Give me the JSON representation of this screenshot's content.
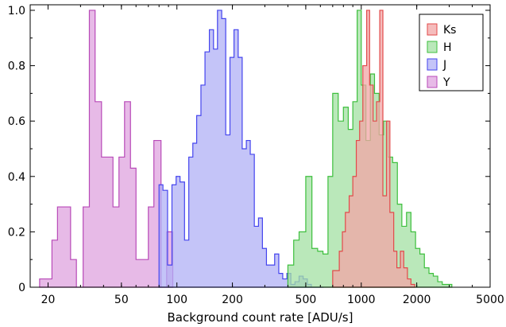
{
  "chart_data": {
    "type": "histogram",
    "xlabel": "Background count rate [ADU/s]",
    "ylabel": "",
    "xscale": "log",
    "xlim": [
      16,
      5000
    ],
    "ylim": [
      0,
      1.02
    ],
    "x_ticks": [
      {
        "value": 20,
        "label": "20"
      },
      {
        "value": 50,
        "label": "50"
      },
      {
        "value": 100,
        "label": "100"
      },
      {
        "value": 200,
        "label": "200"
      },
      {
        "value": 500,
        "label": "500"
      },
      {
        "value": 1000,
        "label": "1000"
      },
      {
        "value": 2000,
        "label": "2000"
      },
      {
        "value": 5000,
        "label": "5000"
      }
    ],
    "y_ticks": [
      {
        "value": 0,
        "label": "0"
      },
      {
        "value": 0.2,
        "label": "0.2"
      },
      {
        "value": 0.4,
        "label": "0.4"
      },
      {
        "value": 0.6,
        "label": "0.6"
      },
      {
        "value": 0.8,
        "label": "0.8"
      },
      {
        "value": 1.0,
        "label": "1.0"
      }
    ],
    "grid": false,
    "legend_position": "top-right",
    "series": [
      {
        "name": "Ks",
        "color": "#e24a4a",
        "fill": "#f2a6a6",
        "edges": [
          700,
          760,
          790,
          820,
          860,
          900,
          940,
          980,
          1020,
          1070,
          1110,
          1160,
          1210,
          1260,
          1310,
          1370,
          1430,
          1500,
          1560,
          1630,
          1700,
          1780,
          1860,
          1950
        ],
        "values": [
          0.06,
          0.13,
          0.2,
          0.27,
          0.33,
          0.4,
          0.53,
          0.6,
          0.8,
          1.0,
          0.73,
          0.6,
          0.67,
          1.0,
          0.33,
          0.6,
          0.27,
          0.13,
          0.07,
          0.13,
          0.07,
          0.03,
          0.01
        ]
      },
      {
        "name": "H",
        "color": "#3dbf3d",
        "fill": "#a3e0a3",
        "edges": [
          400,
          430,
          460,
          500,
          540,
          580,
          620,
          660,
          700,
          750,
          800,
          850,
          900,
          950,
          1000,
          1060,
          1120,
          1180,
          1250,
          1320,
          1400,
          1480,
          1570,
          1660,
          1760,
          1860,
          1970,
          2080,
          2200,
          2330,
          2460,
          2600,
          2750,
          2900,
          3100
        ],
        "values": [
          0.08,
          0.17,
          0.2,
          0.4,
          0.14,
          0.13,
          0.12,
          0.4,
          0.7,
          0.6,
          0.65,
          0.57,
          0.67,
          1.0,
          0.73,
          0.53,
          0.77,
          0.7,
          0.55,
          0.6,
          0.47,
          0.45,
          0.3,
          0.22,
          0.27,
          0.2,
          0.14,
          0.12,
          0.07,
          0.05,
          0.04,
          0.02,
          0.01,
          0.01
        ]
      },
      {
        "name": "J",
        "color": "#4444ee",
        "fill": "#b0b0f5",
        "edges": [
          80,
          84,
          89,
          94,
          99,
          104,
          110,
          116,
          122,
          128,
          135,
          142,
          150,
          158,
          166,
          175,
          184,
          194,
          204,
          215,
          226,
          238,
          250,
          263,
          277,
          291,
          306,
          322,
          339,
          357,
          375,
          395,
          415,
          437,
          460,
          484,
          510,
          536,
          564,
          594,
          625
        ],
        "values": [
          0.37,
          0.35,
          0.08,
          0.37,
          0.4,
          0.38,
          0.17,
          0.47,
          0.52,
          0.62,
          0.73,
          0.85,
          0.93,
          0.86,
          1.0,
          0.97,
          0.55,
          0.83,
          0.93,
          0.83,
          0.5,
          0.53,
          0.48,
          0.22,
          0.25,
          0.14,
          0.08,
          0.08,
          0.12,
          0.05,
          0.03,
          0.05,
          0.01,
          0.02,
          0.04,
          0.03,
          0.01,
          0.0,
          0.0,
          0.0
        ]
      },
      {
        "name": "Y",
        "color": "#b84ab8",
        "fill": "#dfa3df",
        "edges": [
          18,
          19.5,
          21,
          22.5,
          24.5,
          26.5,
          28.5,
          31,
          33.5,
          36,
          39,
          42,
          45,
          48.5,
          52,
          56,
          60,
          65,
          70,
          75,
          82,
          88,
          95
        ],
        "values": [
          0.03,
          0.03,
          0.17,
          0.29,
          0.29,
          0.1,
          0.0,
          0.29,
          1.0,
          0.67,
          0.47,
          0.47,
          0.29,
          0.47,
          0.67,
          0.43,
          0.1,
          0.1,
          0.29,
          0.53,
          0.0,
          0.2
        ]
      }
    ]
  }
}
